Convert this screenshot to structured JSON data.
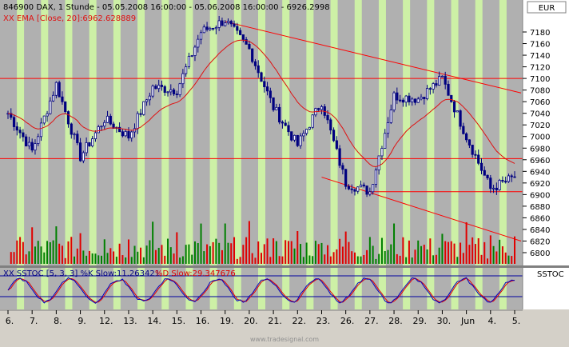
{
  "header": {
    "instrument_line": "846900  DAX, 1 Stunde - 05.05.2008 16:00:00 - 05.06.2008 16:00:00 - 6926.2998",
    "ema_label": "XX EMA [Close, 20]:6962.628889",
    "currency_box": "EUR"
  },
  "indicator": {
    "label_k": "XX SSTOC [5, 3, 3] %K Slow:11.263421",
    "label_d": "%D Slow:29.347676",
    "side_box": "SSTOC"
  },
  "footer": {
    "watermark": "www.tradesignal.com"
  },
  "colors": {
    "panel_bg": "#b0b0b0",
    "stripe": "#cdf0a6",
    "candle": "#000080",
    "ema": "#e01010",
    "hline": "#ff0000",
    "volume_up": "#008000",
    "volume_down": "#e00000",
    "stoch_k": "#0000c0",
    "stoch_d": "#e00000"
  },
  "chart_data": {
    "type": "candlestick",
    "price_axis": {
      "ticks": [
        "7180",
        "7160",
        "7140",
        "7120",
        "7100",
        "7080",
        "7060",
        "7040",
        "7020",
        "7000",
        "6980",
        "6960",
        "6940",
        "6920",
        "6900",
        "6880",
        "6860",
        "6840",
        "6820",
        "6800"
      ],
      "ylim": [
        6790,
        7200
      ]
    },
    "volume_axis": {
      "ticks": [
        "6880",
        "6860",
        "6840",
        "6820",
        "6800"
      ]
    },
    "x_axis": {
      "labels": [
        "6.",
        "7.",
        "8.",
        "9.",
        "12.",
        "13.",
        "14.",
        "15.",
        "16.",
        "19.",
        "20.",
        "21.",
        "22.",
        "23.",
        "26.",
        "27.",
        "28.",
        "29.",
        "30.",
        "Jun",
        "4.",
        "5."
      ]
    },
    "horizontal_levels": [
      7100,
      6962,
      6905
    ],
    "trend_lines": [
      {
        "from": [
          "19.",
          7198
        ],
        "to": [
          "5.",
          7075
        ]
      },
      {
        "from": [
          "23.",
          6930
        ],
        "to": [
          "5.",
          6820
        ]
      }
    ],
    "price_keypoints": [
      [
        "6.",
        7040
      ],
      [
        "7.",
        6975
      ],
      [
        "8.",
        7090
      ],
      [
        "9.",
        6965
      ],
      [
        "12.",
        7030
      ],
      [
        "13.",
        7000
      ],
      [
        "14.",
        7085
      ],
      [
        "15.",
        7080
      ],
      [
        "16.",
        7180
      ],
      [
        "19.",
        7200
      ],
      [
        "20.",
        7150
      ],
      [
        "21.",
        7050
      ],
      [
        "22.",
        6985
      ],
      [
        "23.",
        7060
      ],
      [
        "26.",
        6920
      ],
      [
        "27.",
        6905
      ],
      [
        "28.",
        7070
      ],
      [
        "29.",
        7065
      ],
      [
        "30.",
        7100
      ],
      [
        "Jun",
        7000
      ],
      [
        "4.",
        6910
      ],
      [
        "5.",
        6930
      ]
    ],
    "last_close": 6926.2998,
    "ema_last": 6962.628889,
    "stoch_k_last": 11.263421,
    "stoch_d_last": 29.347676,
    "stoch_levels": [
      80,
      20
    ]
  }
}
